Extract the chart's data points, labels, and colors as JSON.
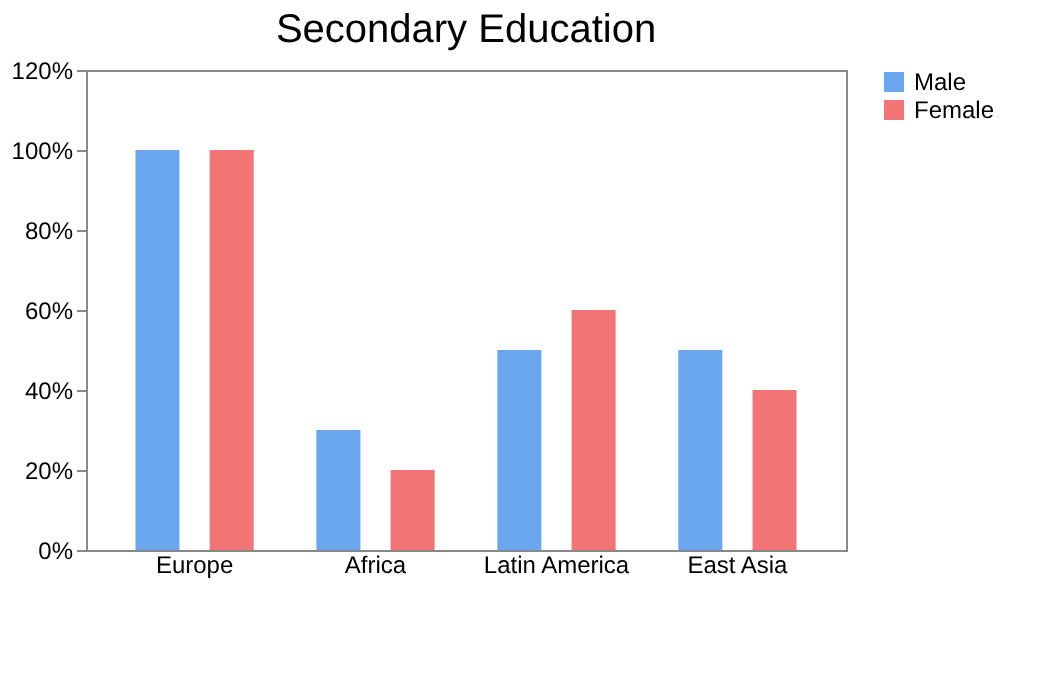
{
  "chart_data": {
    "type": "bar",
    "title": "Secondary Education",
    "categories": [
      "Europe",
      "Africa",
      "Latin America",
      "East Asia"
    ],
    "series": [
      {
        "name": "Male",
        "color": "#6aa6ee",
        "values": [
          100,
          30,
          50,
          50
        ]
      },
      {
        "name": "Female",
        "color": "#f27474",
        "values": [
          100,
          20,
          60,
          40
        ]
      }
    ],
    "ylim": [
      0,
      120
    ],
    "yticks": [
      {
        "value": 0,
        "label": "0%"
      },
      {
        "value": 20,
        "label": "20%"
      },
      {
        "value": 40,
        "label": "40%"
      },
      {
        "value": 60,
        "label": "60%"
      },
      {
        "value": 80,
        "label": "80%"
      },
      {
        "value": 100,
        "label": "100%"
      },
      {
        "value": 120,
        "label": "120%"
      }
    ],
    "grid": false,
    "legend": "right"
  }
}
